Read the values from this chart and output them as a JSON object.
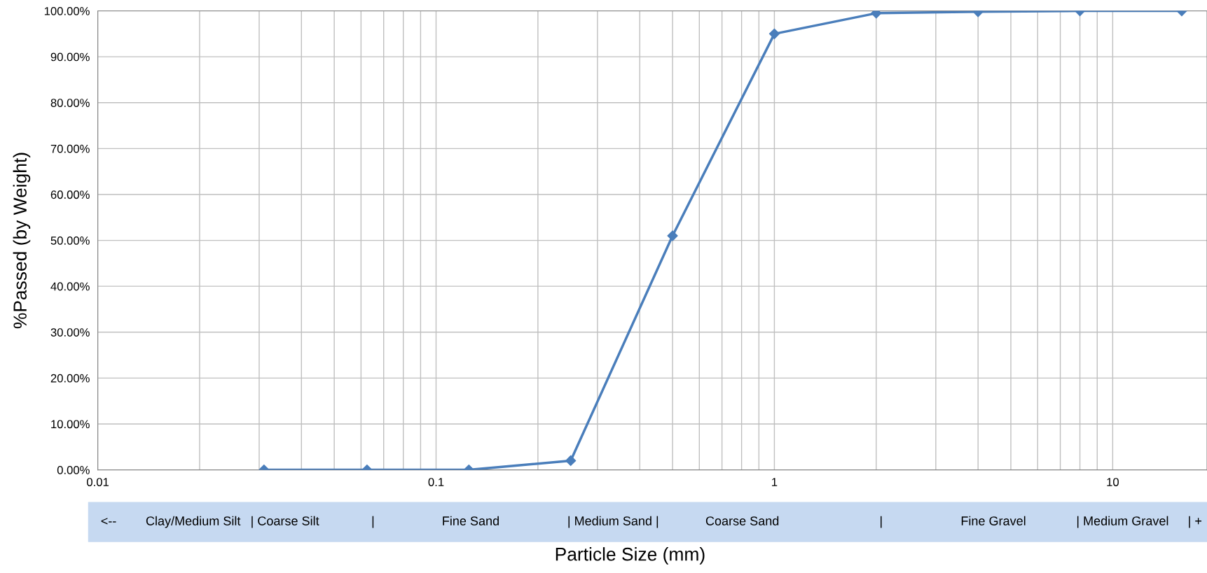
{
  "chart_data": {
    "type": "line",
    "xlabel": "Particle Size (mm)",
    "ylabel": "%Passed (by Weight)",
    "x": [
      0.031,
      0.0625,
      0.125,
      0.25,
      0.5,
      1,
      2,
      4,
      8,
      16
    ],
    "series": [
      {
        "color": "#4a7ebb",
        "values": [
          0,
          0,
          0,
          2,
          51,
          95,
          99.5,
          99.8,
          100,
          100
        ]
      }
    ],
    "marker": "diamond",
    "line_style": "solid",
    "log": "x",
    "grid": true,
    "legend": false,
    "xlim": [
      0.01,
      19
    ],
    "xticks": [
      0.01,
      {
        "value": 0.02,
        "label": null
      },
      {
        "value": 0.03,
        "label": null
      },
      {
        "value": 0.04,
        "label": null
      },
      {
        "value": 0.05,
        "label": null
      },
      {
        "value": 0.06,
        "label": null
      },
      {
        "value": 0.07,
        "label": null
      },
      {
        "value": 0.08,
        "label": null
      },
      {
        "value": 0.09,
        "label": null
      },
      0.1,
      {
        "value": 0.2,
        "label": null
      },
      {
        "value": 0.3,
        "label": null
      },
      {
        "value": 0.4,
        "label": null
      },
      {
        "value": 0.5,
        "label": null
      },
      {
        "value": 0.6,
        "label": null
      },
      {
        "value": 0.7,
        "label": null
      },
      {
        "value": 0.8,
        "label": null
      },
      {
        "value": 0.9,
        "label": null
      },
      1,
      {
        "value": 2,
        "label": null
      },
      {
        "value": 3,
        "label": null
      },
      {
        "value": 4,
        "label": null
      },
      {
        "value": 5,
        "label": null
      },
      {
        "value": 6,
        "label": null
      },
      {
        "value": 7,
        "label": null
      },
      {
        "value": 8,
        "label": null
      },
      {
        "value": 9,
        "label": null
      },
      10
    ],
    "ylim": [
      0,
      100
    ],
    "yticks": [
      {
        "value": 0,
        "label": "0.00%"
      },
      {
        "value": 10,
        "label": "10.00%"
      },
      {
        "value": 20,
        "label": "20.00%"
      },
      {
        "value": 30,
        "label": "30.00%"
      },
      {
        "value": 40,
        "label": "40.00%"
      },
      {
        "value": 50,
        "label": "50.00%"
      },
      {
        "value": 60,
        "label": "60.00%"
      },
      {
        "value": 70,
        "label": "70.00%"
      },
      {
        "value": 80,
        "label": "80.00%"
      },
      {
        "value": 90,
        "label": "90.00%"
      },
      {
        "value": 100,
        "label": "100.00%"
      }
    ],
    "annotations": [
      "<--",
      "Clay/Medium Silt",
      "| Coarse Silt",
      "|",
      "Fine Sand",
      "| Medium Sand |",
      "Coarse Sand",
      "|",
      "Fine Gravel",
      "| Medium Gravel",
      "| +"
    ]
  }
}
